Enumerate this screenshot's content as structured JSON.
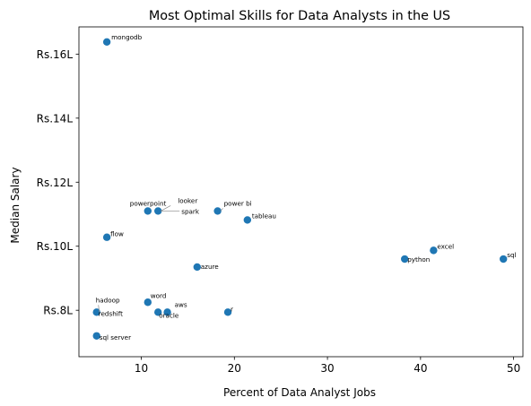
{
  "chart_data": {
    "type": "scatter",
    "title": "Most Optimal Skills for Data Analysts in the US",
    "xlabel": "Percent of Data Analyst Jobs",
    "ylabel": "Median Salary",
    "xlim": [
      3.3,
      51.0
    ],
    "ylim": [
      6.55,
      16.85
    ],
    "xticks": [
      10,
      20,
      30,
      40,
      50
    ],
    "xtick_labels": [
      "10",
      "20",
      "30",
      "40",
      "50"
    ],
    "yticks": [
      8,
      10,
      12,
      14,
      16
    ],
    "ytick_labels": [
      "Rs.8L",
      "Rs.10L",
      "Rs.12L",
      "Rs.14L",
      "Rs.16L"
    ],
    "grid": false,
    "point_color": "#1f77b4",
    "points": [
      {
        "label": "mongodb",
        "x": 6.3,
        "y": 16.38
      },
      {
        "label": "powerpoint",
        "x": 10.7,
        "y": 11.1
      },
      {
        "label": "looker",
        "x": 11.8,
        "y": 11.1
      },
      {
        "label": "spark",
        "x": 11.8,
        "y": 11.1
      },
      {
        "label": "power bi",
        "x": 18.2,
        "y": 11.1
      },
      {
        "label": "tableau",
        "x": 21.4,
        "y": 10.82
      },
      {
        "label": "flow",
        "x": 6.3,
        "y": 10.28
      },
      {
        "label": "excel",
        "x": 41.4,
        "y": 9.87
      },
      {
        "label": "sql",
        "x": 48.9,
        "y": 9.6
      },
      {
        "label": "python",
        "x": 38.3,
        "y": 9.6
      },
      {
        "label": "azure",
        "x": 16.0,
        "y": 9.35
      },
      {
        "label": "word",
        "x": 10.7,
        "y": 8.25
      },
      {
        "label": "hadoop",
        "x": 5.2,
        "y": 7.94
      },
      {
        "label": "redshift",
        "x": 5.2,
        "y": 7.94
      },
      {
        "label": "aws",
        "x": 12.8,
        "y": 7.94
      },
      {
        "label": "oracle",
        "x": 11.8,
        "y": 7.94
      },
      {
        "label": "r",
        "x": 19.3,
        "y": 7.94
      },
      {
        "label": "sql server",
        "x": 5.2,
        "y": 7.2
      }
    ]
  }
}
